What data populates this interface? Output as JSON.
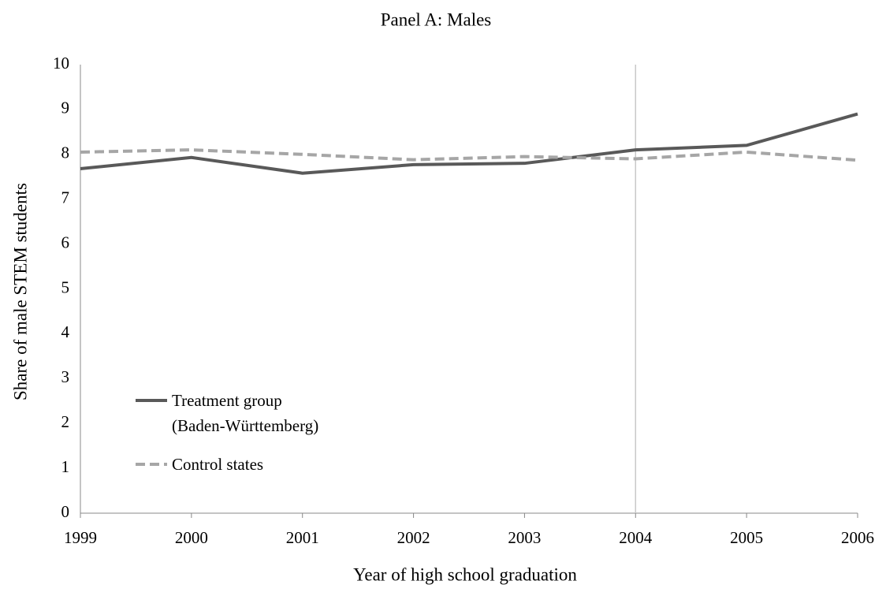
{
  "chart_data": {
    "type": "line",
    "title": "Panel A: Males",
    "xlabel": "Year of high school graduation",
    "ylabel": "Share of male STEM students",
    "x": [
      1999,
      2000,
      2001,
      2002,
      2003,
      2004,
      2005,
      2006
    ],
    "xlim": [
      1999,
      2006
    ],
    "xticks": [
      1999,
      2000,
      2001,
      2002,
      2003,
      2004,
      2005,
      2006
    ],
    "ylim": [
      0,
      10
    ],
    "yticks": [
      0,
      1,
      2,
      3,
      4,
      5,
      6,
      7,
      8,
      9,
      10
    ],
    "vline": 2004,
    "grid": false,
    "legend": "lower left",
    "series": [
      {
        "name": "Treatment group\n(Baden-Württemberg)",
        "color": "#595959",
        "dash": "solid",
        "values": [
          7.68,
          7.93,
          7.58,
          7.77,
          7.8,
          8.1,
          8.2,
          8.9
        ]
      },
      {
        "name": "Control states",
        "color": "#a6a6a6",
        "dash": "dashed",
        "values": [
          8.05,
          8.1,
          8.0,
          7.88,
          7.95,
          7.9,
          8.05,
          7.87
        ]
      }
    ]
  }
}
